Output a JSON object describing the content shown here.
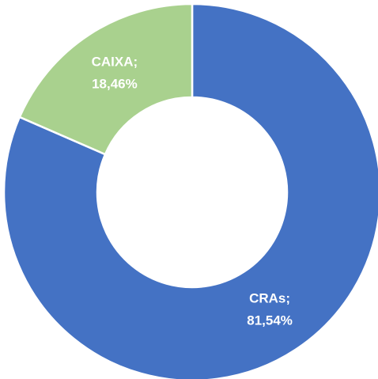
{
  "chart_data": {
    "type": "donut",
    "categories": [
      "CRAs",
      "CAIXA"
    ],
    "label_separator": ";",
    "values": [
      81.54,
      18.46
    ],
    "value_labels": [
      "81,54%",
      "18,46%"
    ],
    "colors": [
      "#4472c4",
      "#a9d18e"
    ]
  }
}
